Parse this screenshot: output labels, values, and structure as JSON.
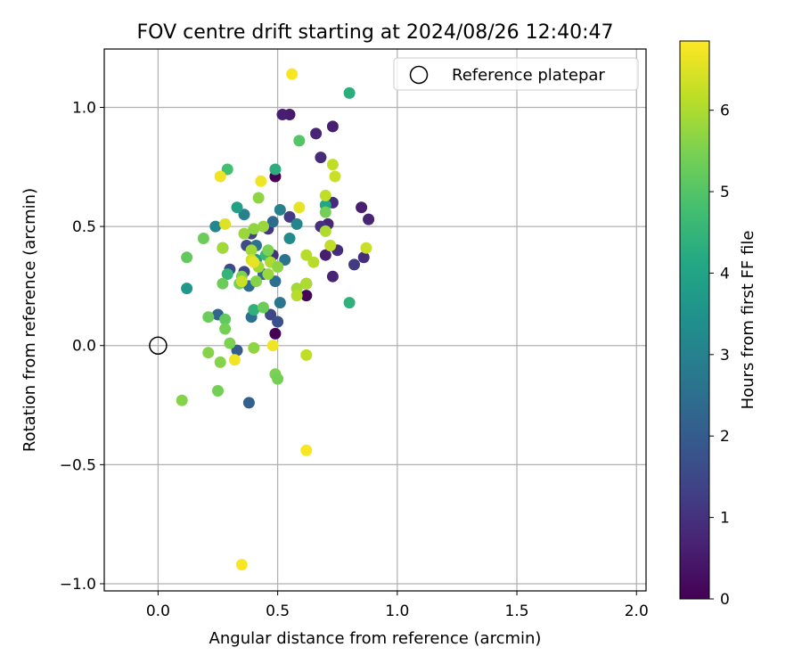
{
  "chart_data": {
    "type": "scatter",
    "title": "FOV centre drift starting at 2024/08/26 12:40:47",
    "xlabel": "Angular distance from reference (arcmin)",
    "ylabel": "Rotation from reference (arcmin)",
    "xlim": [
      -0.225,
      2.04
    ],
    "ylim": [
      -1.03,
      1.245
    ],
    "x_ticks": [
      {
        "value": 0.0,
        "label": "0.0"
      },
      {
        "value": 0.5,
        "label": "0.5"
      },
      {
        "value": 1.0,
        "label": "1.0"
      },
      {
        "value": 1.5,
        "label": "1.5"
      },
      {
        "value": 2.0,
        "label": "2.0"
      }
    ],
    "y_ticks": [
      {
        "value": -1.0,
        "label": "−1.0"
      },
      {
        "value": -0.5,
        "label": "−0.5"
      },
      {
        "value": 0.0,
        "label": "0.0"
      },
      {
        "value": 0.5,
        "label": "0.5"
      },
      {
        "value": 1.0,
        "label": "1.0"
      }
    ],
    "grid": true,
    "legend": {
      "position": "top-right",
      "entries": [
        {
          "label": "Reference platepar",
          "marker": "open-circle"
        }
      ]
    },
    "reference_point": {
      "x": 0.0,
      "y": 0.0
    },
    "colorbar": {
      "label": "Hours from first FF file",
      "colormap": "viridis",
      "range": [
        0,
        6.85
      ],
      "ticks": [
        {
          "value": 0,
          "label": "0"
        },
        {
          "value": 1,
          "label": "1"
        },
        {
          "value": 2,
          "label": "2"
        },
        {
          "value": 3,
          "label": "3"
        },
        {
          "value": 4,
          "label": "4"
        },
        {
          "value": 5,
          "label": "5"
        },
        {
          "value": 6,
          "label": "6"
        }
      ]
    },
    "point_fields": [
      "x_arcmin",
      "y_arcmin",
      "hours"
    ],
    "points": [
      [
        0.49,
        0.71,
        0.0
      ],
      [
        0.49,
        0.05,
        0.0
      ],
      [
        0.62,
        0.21,
        0.1
      ],
      [
        0.55,
        0.97,
        0.5
      ],
      [
        0.52,
        0.97,
        0.6
      ],
      [
        0.73,
        0.92,
        0.6
      ],
      [
        0.68,
        0.79,
        0.9
      ],
      [
        0.66,
        0.89,
        0.7
      ],
      [
        0.85,
        0.58,
        0.6
      ],
      [
        0.88,
        0.53,
        0.7
      ],
      [
        0.73,
        0.6,
        0.9
      ],
      [
        0.71,
        0.51,
        0.8
      ],
      [
        0.68,
        0.5,
        1.0
      ],
      [
        0.75,
        0.4,
        0.9
      ],
      [
        0.7,
        0.38,
        0.6
      ],
      [
        0.86,
        0.37,
        0.9
      ],
      [
        0.82,
        0.34,
        1.2
      ],
      [
        0.73,
        0.29,
        0.7
      ],
      [
        0.62,
        0.26,
        1.1
      ],
      [
        0.55,
        0.54,
        1.2
      ],
      [
        0.46,
        0.49,
        1.1
      ],
      [
        0.48,
        0.38,
        1.0
      ],
      [
        0.39,
        0.47,
        1.4
      ],
      [
        0.37,
        0.42,
        1.6
      ],
      [
        0.36,
        0.31,
        1.4
      ],
      [
        0.3,
        0.32,
        1.6
      ],
      [
        0.27,
        0.41,
        1.9
      ],
      [
        0.47,
        0.13,
        1.5
      ],
      [
        0.5,
        0.1,
        1.7
      ],
      [
        0.33,
        -0.02,
        2.0
      ],
      [
        0.38,
        -0.24,
        2.1
      ],
      [
        0.25,
        0.13,
        2.2
      ],
      [
        0.39,
        0.12,
        2.5
      ],
      [
        0.41,
        0.42,
        2.6
      ],
      [
        0.48,
        0.52,
        2.4
      ],
      [
        0.44,
        0.3,
        2.3
      ],
      [
        0.38,
        0.25,
        2.4
      ],
      [
        0.53,
        0.36,
        2.6
      ],
      [
        0.49,
        0.27,
        2.5
      ],
      [
        0.51,
        0.18,
        2.7
      ],
      [
        0.51,
        0.57,
        3.0
      ],
      [
        0.58,
        0.51,
        3.1
      ],
      [
        0.24,
        0.5,
        3.2
      ],
      [
        0.36,
        0.55,
        3.0
      ],
      [
        0.55,
        0.45,
        3.3
      ],
      [
        0.12,
        0.24,
        3.6
      ],
      [
        0.33,
        0.58,
        3.9
      ],
      [
        0.41,
        0.36,
        3.8
      ],
      [
        0.49,
        0.74,
        4.3
      ],
      [
        0.8,
        1.06,
        4.3
      ],
      [
        0.7,
        0.59,
        4.1
      ],
      [
        0.8,
        0.18,
        4.4
      ],
      [
        0.4,
        0.15,
        4.4
      ],
      [
        0.29,
        0.3,
        4.5
      ],
      [
        0.45,
        0.38,
        4.6
      ],
      [
        0.29,
        0.74,
        4.8
      ],
      [
        0.59,
        0.86,
        5.0
      ],
      [
        0.12,
        0.37,
        5.2
      ],
      [
        0.19,
        0.45,
        5.3
      ],
      [
        0.28,
        0.11,
        5.2
      ],
      [
        0.21,
        0.12,
        5.3
      ],
      [
        0.28,
        0.07,
        5.4
      ],
      [
        0.3,
        0.01,
        5.5
      ],
      [
        0.21,
        -0.03,
        5.6
      ],
      [
        0.26,
        -0.07,
        5.6
      ],
      [
        0.25,
        -0.19,
        5.4
      ],
      [
        0.1,
        -0.23,
        5.6
      ],
      [
        0.4,
        -0.01,
        5.7
      ],
      [
        0.49,
        -0.12,
        5.5
      ],
      [
        0.5,
        -0.14,
        5.4
      ],
      [
        0.44,
        0.16,
        5.3
      ],
      [
        0.27,
        0.26,
        5.3
      ],
      [
        0.34,
        0.26,
        5.4
      ],
      [
        0.35,
        0.29,
        5.5
      ],
      [
        0.41,
        0.27,
        5.6
      ],
      [
        0.46,
        0.4,
        5.5
      ],
      [
        0.42,
        0.62,
        5.7
      ],
      [
        0.44,
        0.5,
        5.8
      ],
      [
        0.4,
        0.49,
        5.7
      ],
      [
        0.36,
        0.47,
        5.8
      ],
      [
        0.39,
        0.4,
        5.9
      ],
      [
        0.42,
        0.33,
        5.9
      ],
      [
        0.47,
        0.35,
        6.0
      ],
      [
        0.46,
        0.3,
        5.8
      ],
      [
        0.27,
        0.41,
        5.9
      ],
      [
        0.5,
        0.33,
        5.7
      ],
      [
        0.58,
        0.24,
        5.9
      ],
      [
        0.62,
        0.26,
        6.0
      ],
      [
        0.58,
        0.21,
        6.1
      ],
      [
        0.62,
        0.38,
        6.1
      ],
      [
        0.65,
        0.35,
        6.1
      ],
      [
        0.7,
        0.48,
        6.0
      ],
      [
        0.7,
        0.63,
        6.2
      ],
      [
        0.72,
        0.42,
        6.2
      ],
      [
        0.73,
        0.76,
        6.2
      ],
      [
        0.74,
        0.71,
        6.3
      ],
      [
        0.87,
        0.41,
        6.3
      ],
      [
        0.62,
        -0.04,
        6.2
      ],
      [
        0.7,
        0.56,
        5.4
      ],
      [
        0.35,
        0.27,
        6.3
      ],
      [
        0.39,
        0.36,
        6.4
      ],
      [
        0.28,
        0.51,
        6.5
      ],
      [
        0.26,
        0.71,
        6.7
      ],
      [
        0.43,
        0.69,
        6.7
      ],
      [
        0.59,
        0.58,
        6.6
      ],
      [
        0.4,
        0.35,
        6.6
      ],
      [
        0.48,
        0.0,
        6.7
      ],
      [
        0.32,
        -0.06,
        6.7
      ],
      [
        0.56,
        1.14,
        6.8
      ],
      [
        0.62,
        -0.44,
        6.8
      ],
      [
        0.35,
        -0.92,
        6.8
      ]
    ]
  }
}
